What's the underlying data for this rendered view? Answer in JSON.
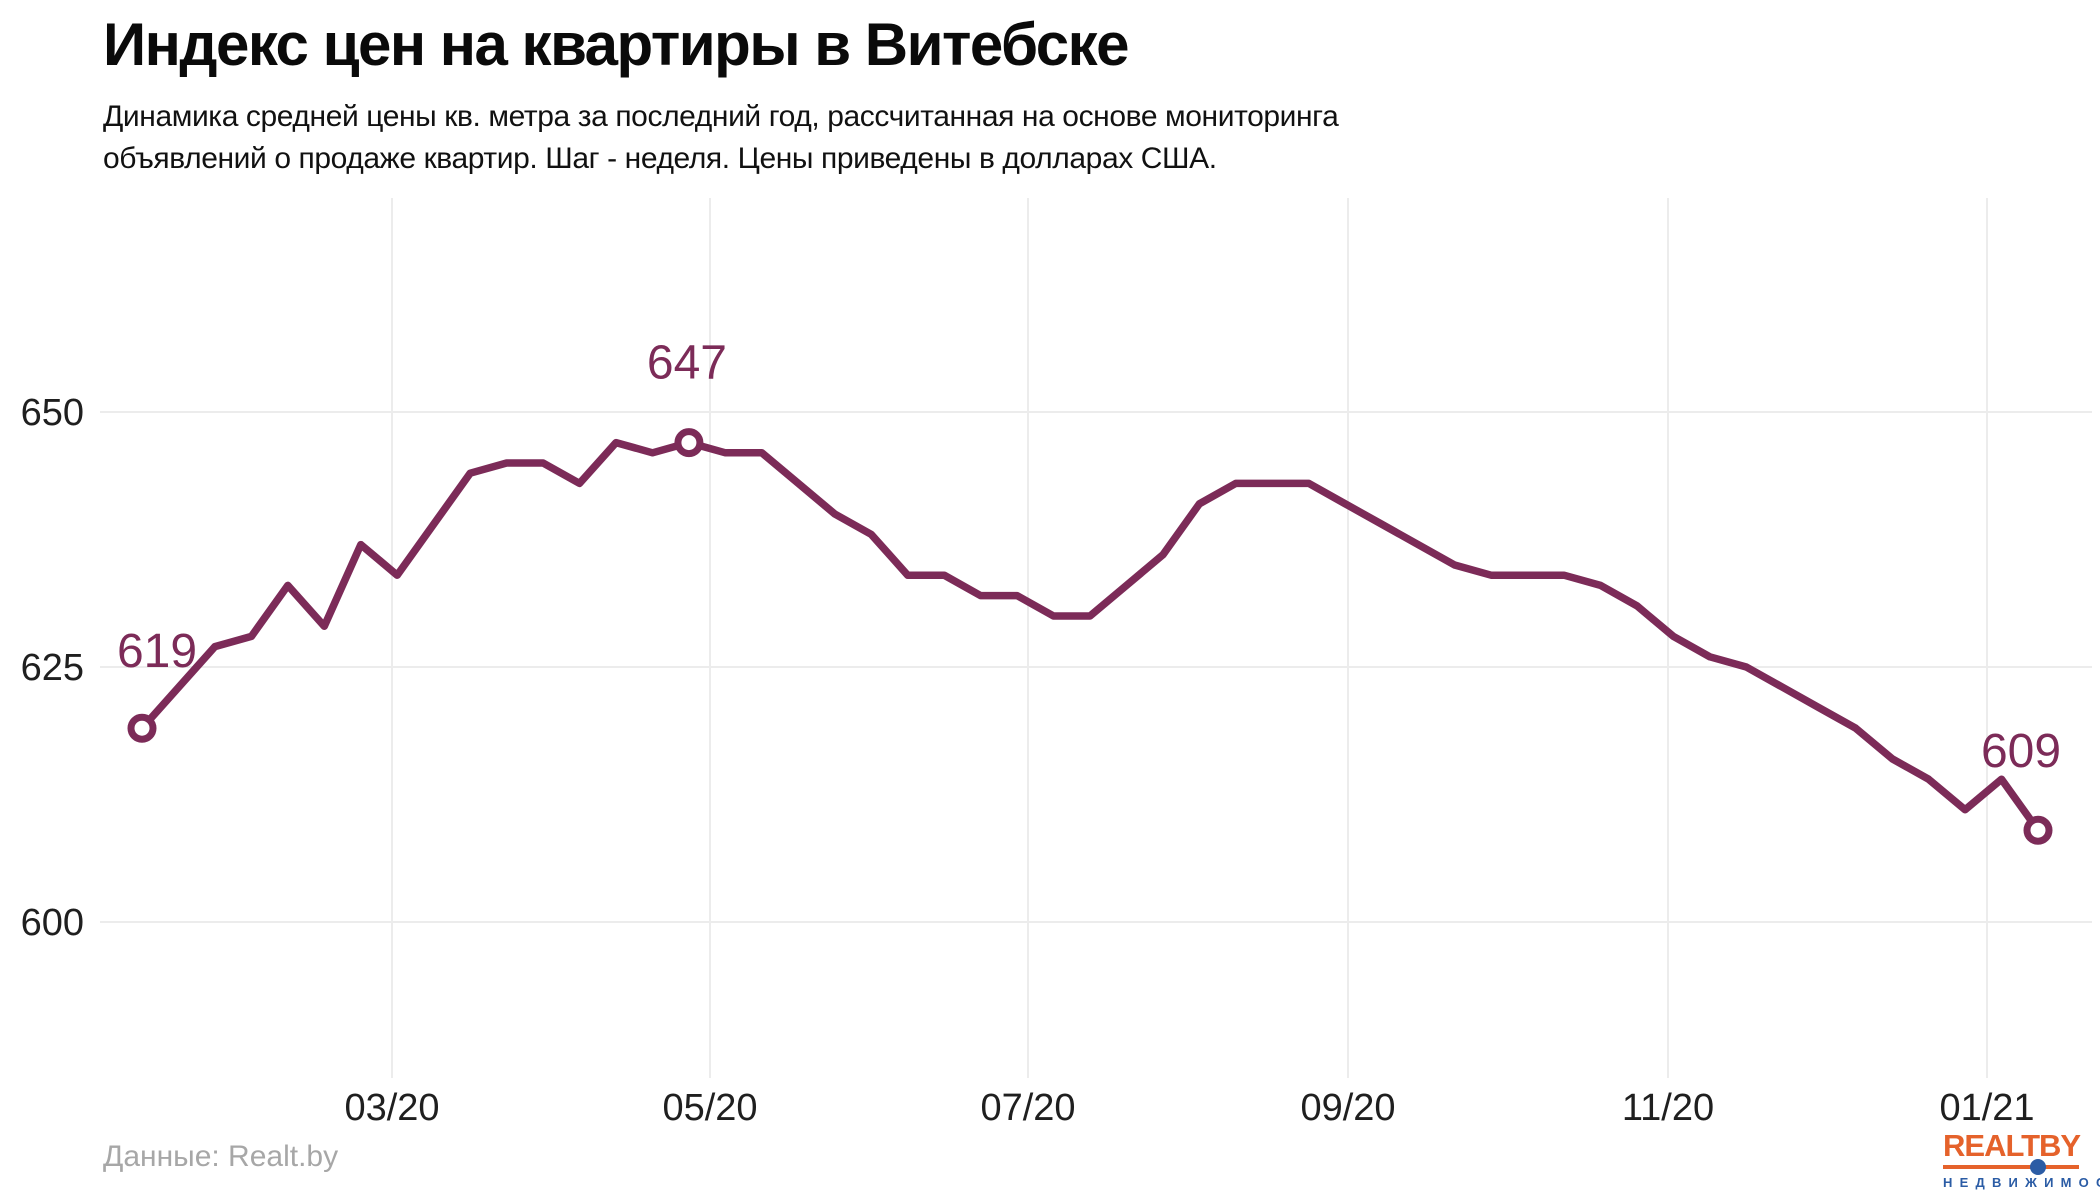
{
  "colors": {
    "line": "#7C2B58",
    "grid": "#ECECEC",
    "tick_text": "#1F1F1F",
    "source_text": "#A7A7A7",
    "logo_orange": "#E5622B",
    "logo_blue": "#2B5CA5"
  },
  "chart_data": {
    "type": "line",
    "title": "Индекс цен на квартиры в Витебске",
    "subtitle_line1": "Динамика средней цены кв. метра за последний год, рассчитанная на основе мониторинга",
    "subtitle_line2": "объявлений о продаже квартир. Шаг - неделя. Цены приведены в долларах США.",
    "x_tick_labels": [
      "03/20",
      "05/20",
      "07/20",
      "09/20",
      "11/20",
      "01/21"
    ],
    "y_ticks": [
      650,
      625,
      600
    ],
    "ylim": [
      584,
      671
    ],
    "grid": true,
    "legend": "none",
    "step": "неделя",
    "currency": "USD",
    "values": [
      619,
      623,
      627,
      628,
      633,
      629,
      637,
      634,
      639,
      644,
      645,
      645,
      643,
      647,
      646,
      647,
      646,
      646,
      643,
      640,
      638,
      634,
      634,
      632,
      632,
      630,
      630,
      633,
      636,
      641,
      643,
      643,
      643,
      641,
      639,
      637,
      635,
      634,
      634,
      634,
      633,
      631,
      628,
      626,
      625,
      623,
      621,
      619,
      616,
      614,
      611,
      614,
      609
    ],
    "annotations": [
      {
        "index": 0,
        "label": "619"
      },
      {
        "index": 15,
        "label": "647"
      },
      {
        "index": 52,
        "label": "609"
      }
    ]
  },
  "footer": {
    "source": "Данные: Realt.by",
    "logo": {
      "main": "REALT",
      "suffix": "BY",
      "tagline": "Н Е Д В И Ж И М О С Т Ь"
    }
  }
}
